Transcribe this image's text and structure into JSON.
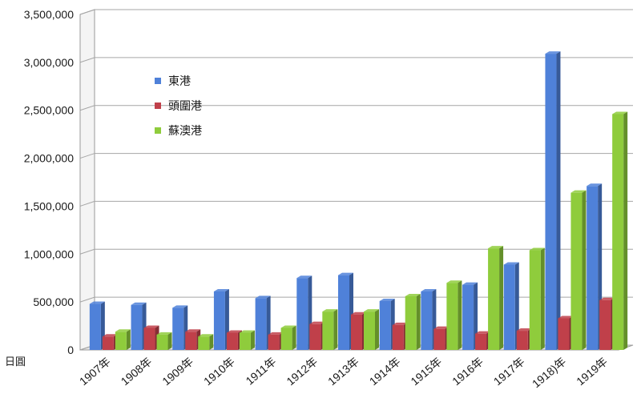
{
  "chart_data": {
    "type": "bar",
    "title": "",
    "xlabel": "",
    "ylabel": "",
    "unit_label": "日圓",
    "ylim": [
      0,
      3500000
    ],
    "yticks": [
      0,
      500000,
      1000000,
      1500000,
      2000000,
      2500000,
      3000000,
      3500000
    ],
    "ytick_labels": [
      "0",
      "500,000",
      "1,000,000",
      "1,500,000",
      "2,000,000",
      "2,500,000",
      "3,000,000",
      "3,500,000"
    ],
    "grid": "horizontal",
    "legend_position": "top-left",
    "categories": [
      "1907年",
      "1908年",
      "1909年",
      "1910年",
      "1911年",
      "1912年",
      "1913年",
      "1914年",
      "1915年",
      "1916年",
      "1917年",
      "1918)年",
      "1919年"
    ],
    "series": [
      {
        "name": "東港",
        "color": "#4f81d9",
        "values": [
          480000,
          470000,
          440000,
          610000,
          540000,
          750000,
          780000,
          510000,
          610000,
          680000,
          890000,
          3090000,
          1710000
        ]
      },
      {
        "name": "頭圍港",
        "color": "#c0404a",
        "values": [
          140000,
          230000,
          190000,
          180000,
          160000,
          270000,
          370000,
          260000,
          220000,
          170000,
          200000,
          330000,
          520000
        ]
      },
      {
        "name": "蘇澳港",
        "color": "#8fcc3c",
        "values": [
          190000,
          160000,
          140000,
          180000,
          230000,
          400000,
          400000,
          560000,
          700000,
          1060000,
          1040000,
          1640000,
          2460000
        ]
      }
    ]
  }
}
